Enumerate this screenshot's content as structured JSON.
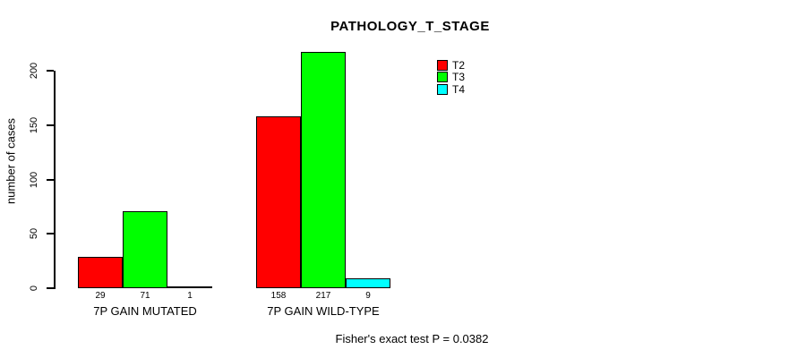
{
  "chart_data": {
    "type": "bar",
    "title": "PATHOLOGY_T_STAGE",
    "ylabel": "number of cases",
    "xlabel": "",
    "categories": [
      "7P GAIN MUTATED",
      "7P GAIN WILD-TYPE"
    ],
    "series": [
      {
        "name": "T2",
        "color": "#ff0000",
        "values": [
          29,
          158
        ]
      },
      {
        "name": "T3",
        "color": "#00ff00",
        "values": [
          71,
          217
        ]
      },
      {
        "name": "T4",
        "color": "#00ffff",
        "values": [
          1,
          9
        ]
      }
    ],
    "yticks": [
      0,
      50,
      100,
      150,
      200
    ],
    "ylim": [
      0,
      217
    ],
    "grid": false,
    "legend_position": "top-right",
    "bar_value_labels_shown": true,
    "annotation": "Fisher's exact test P = 0.0382"
  }
}
